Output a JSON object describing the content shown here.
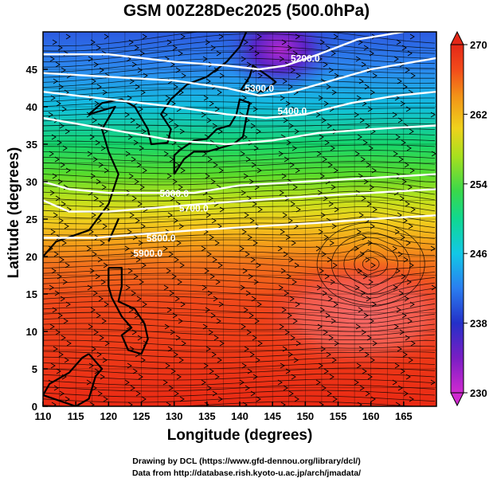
{
  "title": "GSM 00Z28Dec2025 (500.0hPa)",
  "xaxis": {
    "label": "Longitude (degrees)",
    "ticks": [
      "110",
      "115",
      "120",
      "125",
      "130",
      "135",
      "140",
      "145",
      "150",
      "155",
      "160",
      "165"
    ]
  },
  "yaxis": {
    "label": "Latitude  (degrees)",
    "ticks": [
      "0",
      "5",
      "10",
      "15",
      "20",
      "25",
      "30",
      "35",
      "40",
      "45"
    ]
  },
  "colorbar": {
    "ticks": [
      "230",
      "238",
      "246",
      "254",
      "262",
      "270"
    ],
    "colors": [
      "#d02ad0",
      "#6a1fc0",
      "#2430c8",
      "#2a7ef0",
      "#12c8e6",
      "#10d890",
      "#3ad84a",
      "#a8e01e",
      "#f0d21c",
      "#f29418",
      "#f24a1a",
      "#e42818"
    ]
  },
  "contours": {
    "labels": [
      "5200.0",
      "5300.0",
      "5400.0",
      "5600.0",
      "5700.0",
      "5800.0",
      "5900.0"
    ]
  },
  "credits": {
    "line1": "Drawing by DCL (https://www.gfd-dennou.org/library/dcl/)",
    "line2": "Data from http://database.rish.kyoto-u.ac.jp/arch/jmadata/"
  },
  "chart_data": {
    "type": "heatmap",
    "title": "GSM 00Z28Dec2025 (500.0hPa)",
    "xlabel": "Longitude (degrees)",
    "ylabel": "Latitude  (degrees)",
    "xlim": [
      110,
      170
    ],
    "ylim": [
      0,
      50
    ],
    "colorbar_range": [
      230,
      270
    ],
    "colorbar_ticks": [
      230,
      238,
      246,
      254,
      262,
      270
    ],
    "temperature_profile": [
      {
        "lat": 0,
        "value": 267
      },
      {
        "lat": 10,
        "value": 267
      },
      {
        "lat": 20,
        "value": 265
      },
      {
        "lat": 25,
        "value": 263
      },
      {
        "lat": 30,
        "value": 258
      },
      {
        "lat": 35,
        "value": 254
      },
      {
        "lat": 40,
        "value": 250
      },
      {
        "lat": 45,
        "value": 244
      },
      {
        "lat": 50,
        "value": 240
      }
    ],
    "cold_core": {
      "lon": 145,
      "lat": 49,
      "value": 231
    },
    "cyclone_center": {
      "lon": 160,
      "lat": 19
    },
    "height_contours": [
      {
        "label": "5200.0",
        "lon": 150,
        "lat": 46
      },
      {
        "label": "5300.0",
        "lon": 143,
        "lat": 42
      },
      {
        "label": "5400.0",
        "lon": 148,
        "lat": 39
      },
      {
        "label": "5600.0",
        "lon": 130,
        "lat": 28
      },
      {
        "label": "5700.0",
        "lon": 133,
        "lat": 26
      },
      {
        "label": "5800.0",
        "lon": 128,
        "lat": 22
      },
      {
        "label": "5900.0",
        "lon": 126,
        "lat": 20
      }
    ]
  }
}
